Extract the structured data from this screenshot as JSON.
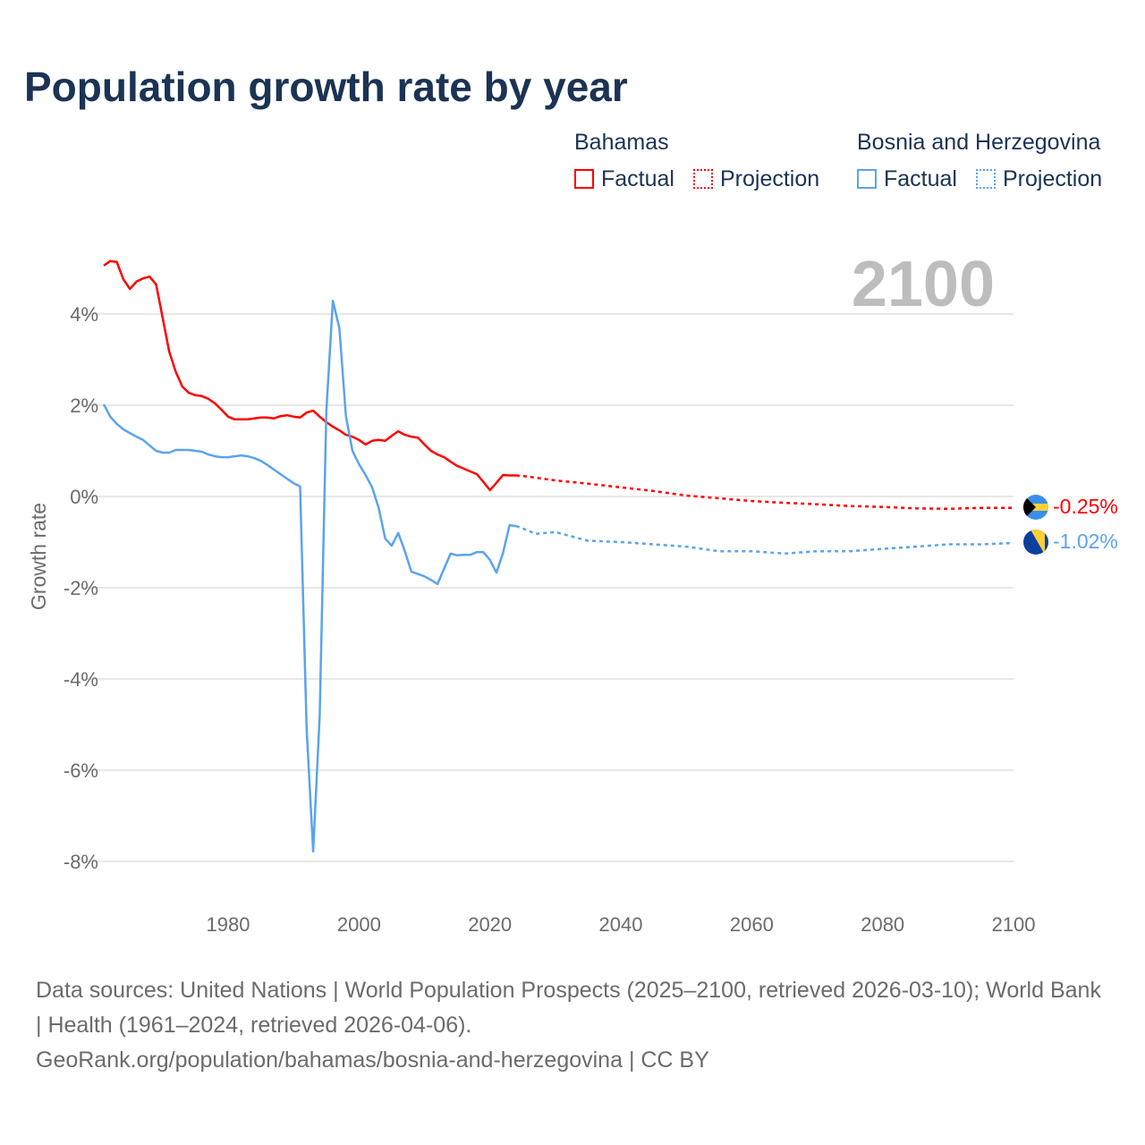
{
  "title": "Population growth rate by year",
  "legend": {
    "groups": [
      {
        "name": "Bahamas",
        "factual": "Factual",
        "projection": "Projection",
        "color": "#ff0000"
      },
      {
        "name": "Bosnia and Herzegovina",
        "factual": "Factual",
        "projection": "Projection",
        "color": "#5ba3ee"
      }
    ]
  },
  "year_label": "2100",
  "end_labels": [
    "-0.25%",
    "-1.02%"
  ],
  "sources": [
    "Data sources: United Nations | World Population Prospects (2025–2100, retrieved 2026-03-10); World Bank | Health (1961–2024, retrieved 2026-04-06).",
    "GeoRank.org/population/bahamas/bosnia-and-herzegovina | CC BY"
  ],
  "chart_data": {
    "type": "line",
    "title": "Population growth rate by year",
    "xlabel": "",
    "ylabel": "Growth rate",
    "xlim": [
      1961,
      2100
    ],
    "ylim": [
      -9,
      5.3
    ],
    "xticks": [
      1980,
      2000,
      2020,
      2040,
      2060,
      2080,
      2100
    ],
    "xtick_labels": [
      "1980",
      "2000",
      "2020",
      "2040",
      "2060",
      "2080",
      "2100"
    ],
    "yticks": [
      4,
      2,
      0,
      -2,
      -4,
      -6,
      -8
    ],
    "ytick_labels": [
      "4%",
      "2%",
      "0%",
      "-2%",
      "-4%",
      "-6%",
      "-8%"
    ],
    "grid": true,
    "series": [
      {
        "name": "Bahamas Factual",
        "color": "#ff0000",
        "dashed": false,
        "x": [
          1961,
          1962,
          1963,
          1964,
          1965,
          1966,
          1967,
          1968,
          1969,
          1970,
          1971,
          1972,
          1973,
          1974,
          1975,
          1976,
          1977,
          1978,
          1979,
          1980,
          1981,
          1982,
          1983,
          1984,
          1985,
          1986,
          1987,
          1988,
          1989,
          1990,
          1991,
          1992,
          1993,
          1994,
          1995,
          1996,
          1997,
          1998,
          1999,
          2000,
          2001,
          2002,
          2003,
          2004,
          2005,
          2006,
          2007,
          2008,
          2009,
          2010,
          2011,
          2012,
          2013,
          2014,
          2015,
          2016,
          2017,
          2018,
          2019,
          2020,
          2021,
          2022,
          2023,
          2024
        ],
        "y": [
          5.06,
          5.16,
          5.14,
          4.76,
          4.55,
          4.71,
          4.78,
          4.82,
          4.65,
          3.92,
          3.18,
          2.73,
          2.41,
          2.27,
          2.22,
          2.2,
          2.14,
          2.04,
          1.9,
          1.75,
          1.69,
          1.69,
          1.69,
          1.71,
          1.73,
          1.73,
          1.71,
          1.76,
          1.78,
          1.75,
          1.73,
          1.84,
          1.88,
          1.75,
          1.63,
          1.53,
          1.45,
          1.35,
          1.31,
          1.24,
          1.14,
          1.22,
          1.24,
          1.22,
          1.33,
          1.43,
          1.35,
          1.31,
          1.29,
          1.14,
          1.0,
          0.92,
          0.86,
          0.76,
          0.67,
          0.61,
          0.55,
          0.49,
          0.32,
          0.14,
          0.3,
          0.47,
          0.46,
          0.46
        ]
      },
      {
        "name": "Bahamas Projection",
        "color": "#ff0000",
        "dashed": true,
        "x": [
          2024,
          2025,
          2030,
          2035,
          2040,
          2045,
          2050,
          2055,
          2060,
          2065,
          2070,
          2075,
          2080,
          2085,
          2090,
          2095,
          2100
        ],
        "y": [
          0.46,
          0.45,
          0.35,
          0.28,
          0.2,
          0.12,
          0.02,
          -0.04,
          -0.1,
          -0.14,
          -0.17,
          -0.21,
          -0.23,
          -0.26,
          -0.27,
          -0.25,
          -0.25
        ]
      },
      {
        "name": "Bosnia and Herzegovina Factual",
        "color": "#5ba3ee",
        "dashed": false,
        "x": [
          1961,
          1962,
          1963,
          1964,
          1965,
          1966,
          1967,
          1968,
          1969,
          1970,
          1971,
          1972,
          1973,
          1974,
          1975,
          1976,
          1977,
          1978,
          1979,
          1980,
          1981,
          1982,
          1983,
          1984,
          1985,
          1986,
          1987,
          1988,
          1989,
          1990,
          1991,
          1992,
          1993,
          1994,
          1995,
          1996,
          1997,
          1998,
          1999,
          2000,
          2001,
          2002,
          2003,
          2004,
          2005,
          2006,
          2007,
          2008,
          2009,
          2010,
          2011,
          2012,
          2013,
          2014,
          2015,
          2016,
          2017,
          2018,
          2019,
          2020,
          2021,
          2022,
          2023,
          2024
        ],
        "y": [
          2.02,
          1.75,
          1.59,
          1.47,
          1.39,
          1.31,
          1.24,
          1.12,
          1.0,
          0.96,
          0.96,
          1.02,
          1.02,
          1.02,
          1.0,
          0.98,
          0.92,
          0.88,
          0.86,
          0.86,
          0.88,
          0.9,
          0.88,
          0.84,
          0.78,
          0.69,
          0.59,
          0.49,
          0.39,
          0.29,
          0.22,
          -5.1,
          -7.78,
          -4.8,
          1.86,
          4.29,
          3.69,
          1.76,
          1.0,
          0.71,
          0.47,
          0.2,
          -0.25,
          -0.92,
          -1.08,
          -0.8,
          -1.2,
          -1.65,
          -1.7,
          -1.75,
          -1.83,
          -1.92,
          -1.58,
          -1.25,
          -1.29,
          -1.28,
          -1.28,
          -1.22,
          -1.22,
          -1.39,
          -1.67,
          -1.24,
          -0.63,
          -0.65
        ]
      },
      {
        "name": "Bosnia and Herzegovina Projection",
        "color": "#5ba3ee",
        "dashed": true,
        "x": [
          2024,
          2025,
          2027,
          2030,
          2035,
          2040,
          2045,
          2050,
          2055,
          2060,
          2065,
          2070,
          2075,
          2080,
          2085,
          2090,
          2095,
          2100
        ],
        "y": [
          -0.65,
          -0.7,
          -0.82,
          -0.78,
          -0.97,
          -1.0,
          -1.05,
          -1.1,
          -1.2,
          -1.2,
          -1.25,
          -1.2,
          -1.2,
          -1.15,
          -1.1,
          -1.05,
          -1.05,
          -1.02
        ]
      }
    ]
  }
}
